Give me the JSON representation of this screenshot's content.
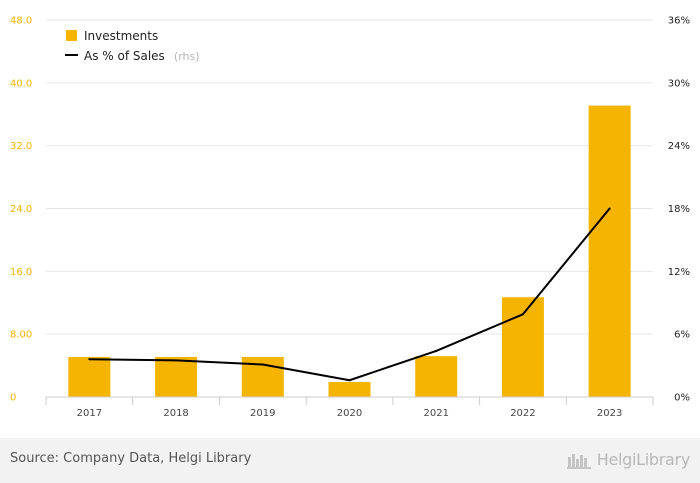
{
  "chart_data": {
    "type": "bar",
    "categories": [
      "2017",
      "2018",
      "2019",
      "2020",
      "2021",
      "2022",
      "2023"
    ],
    "series": [
      {
        "name": "Investments",
        "type": "bar",
        "axis": "left",
        "values": [
          5.1,
          5.1,
          5.1,
          1.9,
          5.2,
          12.7,
          37.1
        ]
      },
      {
        "name": "As % of Sales",
        "type": "line",
        "axis": "right",
        "values": [
          3.6,
          3.5,
          3.1,
          1.6,
          4.4,
          7.9,
          18.0
        ]
      }
    ],
    "legend_note": "(rhs)",
    "ylim_left": [
      0,
      48
    ],
    "yticks_left": [
      "0",
      "8.00",
      "16.0",
      "24.0",
      "32.0",
      "40.0",
      "48.0"
    ],
    "ylim_right": [
      0,
      36
    ],
    "yticks_right": [
      "0%",
      "6%",
      "12%",
      "18%",
      "24%",
      "30%",
      "36%"
    ],
    "legend_position": "top-left",
    "grid": true
  },
  "colors": {
    "bar": "#f5b400",
    "line": "#000000",
    "grid": "#e6e6e6",
    "left_axis_text": "#f5b400"
  },
  "footer": {
    "source": "Source: Company Data, Helgi Library",
    "brand": "HelgiLibrary"
  }
}
